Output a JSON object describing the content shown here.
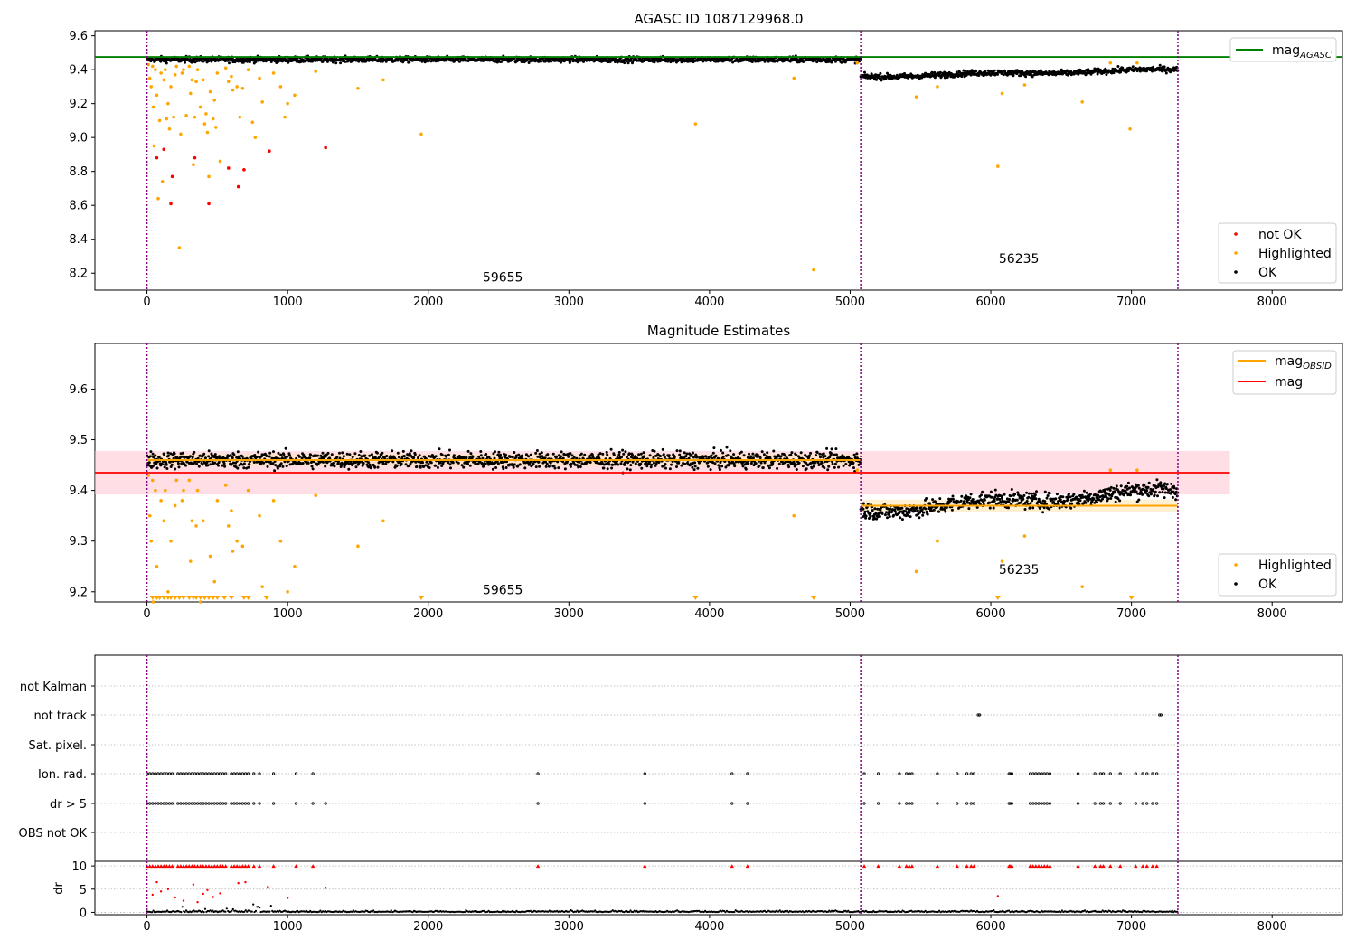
{
  "figure": {
    "title": "AGASC ID 1087129968.0",
    "subtitle": "Magnitude Estimates"
  },
  "colors": {
    "ok": "#000000",
    "highlighted": "#ffa500",
    "not_ok": "#ff0000",
    "agasc_line": "#008000",
    "mag_line": "#ff0000",
    "obsid_line": "#ffa500",
    "band": "#ffc0cb",
    "obs_boundary": "#800080",
    "grid": "#b0b0b0"
  },
  "chart_data": [
    {
      "type": "scatter",
      "title": "AGASC ID 1087129968.0",
      "xlim": [
        -370,
        8500
      ],
      "ylim": [
        8.1,
        9.63
      ],
      "xticks": [
        "0",
        "1000",
        "2000",
        "3000",
        "4000",
        "5000",
        "6000",
        "7000",
        "8000"
      ],
      "yticks": [
        "8.2",
        "8.4",
        "8.6",
        "8.8",
        "9.0",
        "9.2",
        "9.4",
        "9.6"
      ],
      "legend_top": {
        "position": "top-right",
        "entries": [
          "mag",
          "AGASC"
        ]
      },
      "legend_bottom": {
        "position": "bottom-right",
        "entries": [
          "not OK",
          "Highlighted",
          "OK"
        ]
      },
      "annotations": [
        {
          "text": "59655",
          "x": 2530,
          "y": 8.15
        },
        {
          "text": "56235",
          "x": 6200,
          "y": 8.26
        }
      ],
      "observation_boundaries": [
        0,
        5075,
        7330
      ],
      "mag_agasc": {
        "value": 9.475,
        "x_range": [
          -370,
          8500
        ]
      },
      "segments": [
        {
          "obsid": "59655",
          "x_range": [
            0,
            5075
          ],
          "mean": 9.46,
          "spread": 0.012
        },
        {
          "obsid": "56235",
          "x_range": [
            5075,
            7330
          ],
          "mean_start": 9.36,
          "mean_end": 9.4,
          "spread": 0.012
        }
      ],
      "series": [
        {
          "name": "not OK",
          "points": [
            [
              70,
              8.88
            ],
            [
              120,
              8.93
            ],
            [
              170,
              8.61
            ],
            [
              180,
              8.77
            ],
            [
              340,
              8.88
            ],
            [
              440,
              8.61
            ],
            [
              580,
              8.82
            ],
            [
              650,
              8.71
            ],
            [
              690,
              8.81
            ],
            [
              870,
              8.92
            ],
            [
              1270,
              8.94
            ]
          ]
        },
        {
          "name": "Highlighted",
          "points": [
            [
              10,
              9.43
            ],
            [
              20,
              9.35
            ],
            [
              30,
              9.3
            ],
            [
              40,
              9.42
            ],
            [
              45,
              9.18
            ],
            [
              50,
              8.95
            ],
            [
              60,
              9.4
            ],
            [
              70,
              9.25
            ],
            [
              80,
              8.64
            ],
            [
              90,
              9.1
            ],
            [
              100,
              9.38
            ],
            [
              110,
              8.74
            ],
            [
              120,
              9.34
            ],
            [
              130,
              9.4
            ],
            [
              140,
              9.11
            ],
            [
              150,
              9.2
            ],
            [
              160,
              9.05
            ],
            [
              170,
              9.3
            ],
            [
              190,
              9.12
            ],
            [
              200,
              9.37
            ],
            [
              210,
              9.42
            ],
            [
              230,
              8.35
            ],
            [
              240,
              9.02
            ],
            [
              250,
              9.38
            ],
            [
              260,
              9.4
            ],
            [
              280,
              9.13
            ],
            [
              300,
              9.42
            ],
            [
              310,
              9.26
            ],
            [
              320,
              9.34
            ],
            [
              330,
              8.84
            ],
            [
              340,
              9.12
            ],
            [
              350,
              9.33
            ],
            [
              360,
              9.4
            ],
            [
              380,
              9.18
            ],
            [
              400,
              9.34
            ],
            [
              410,
              9.08
            ],
            [
              420,
              9.14
            ],
            [
              430,
              9.03
            ],
            [
              440,
              8.77
            ],
            [
              450,
              9.27
            ],
            [
              470,
              9.11
            ],
            [
              480,
              9.22
            ],
            [
              490,
              9.06
            ],
            [
              500,
              9.38
            ],
            [
              520,
              8.86
            ],
            [
              560,
              9.41
            ],
            [
              580,
              9.33
            ],
            [
              600,
              9.36
            ],
            [
              610,
              9.28
            ],
            [
              640,
              9.3
            ],
            [
              660,
              9.12
            ],
            [
              680,
              9.29
            ],
            [
              720,
              9.4
            ],
            [
              750,
              9.09
            ],
            [
              770,
              9.0
            ],
            [
              800,
              9.35
            ],
            [
              820,
              9.21
            ],
            [
              900,
              9.38
            ],
            [
              950,
              9.3
            ],
            [
              980,
              9.12
            ],
            [
              1000,
              9.2
            ],
            [
              1050,
              9.25
            ],
            [
              1200,
              9.39
            ],
            [
              1500,
              9.29
            ],
            [
              1680,
              9.34
            ],
            [
              1950,
              9.02
            ],
            [
              3900,
              9.08
            ],
            [
              4600,
              9.35
            ],
            [
              4740,
              8.22
            ],
            [
              5050,
              9.44
            ],
            [
              5470,
              9.24
            ],
            [
              5620,
              9.3
            ],
            [
              6050,
              8.83
            ],
            [
              6080,
              9.26
            ],
            [
              6240,
              9.31
            ],
            [
              6650,
              9.21
            ],
            [
              6850,
              9.44
            ],
            [
              6990,
              9.05
            ],
            [
              7040,
              9.44
            ]
          ]
        },
        {
          "name": "OK",
          "density": "dense",
          "x_range": [
            0,
            7330
          ]
        }
      ]
    },
    {
      "type": "scatter",
      "title": "Magnitude Estimates",
      "xlim": [
        -370,
        8500
      ],
      "ylim": [
        9.18,
        9.69
      ],
      "xticks": [
        "0",
        "1000",
        "2000",
        "3000",
        "4000",
        "5000",
        "6000",
        "7000",
        "8000"
      ],
      "yticks": [
        "9.2",
        "9.3",
        "9.4",
        "9.5",
        "9.6"
      ],
      "legend_top": {
        "position": "top-right",
        "entries": [
          "mag",
          "OBSID",
          "mag"
        ]
      },
      "legend_bottom": {
        "position": "bottom-right",
        "entries": [
          "Highlighted",
          "OK"
        ]
      },
      "annotations": [
        {
          "text": "59655",
          "x": 2530,
          "y": 9.195
        },
        {
          "text": "56235",
          "x": 6200,
          "y": 9.235
        }
      ],
      "mag": {
        "value": 9.435,
        "band": [
          9.392,
          9.478
        ],
        "x_range": [
          -370,
          7700
        ]
      },
      "mag_obsid": [
        {
          "x_range": [
            0,
            5075
          ],
          "value": 9.46
        },
        {
          "x_range": [
            5075,
            7330
          ],
          "value": 9.37
        }
      ],
      "clipped_low_x": [
        40,
        70,
        90,
        120,
        150,
        170,
        200,
        230,
        260,
        300,
        330,
        350,
        380,
        410,
        440,
        470,
        500,
        550,
        600,
        690,
        720,
        850,
        1950,
        3900,
        4740,
        6050,
        7000
      ]
    },
    {
      "type": "scatter",
      "title": "",
      "xlim": [
        -370,
        8500
      ],
      "xticks": [
        "0",
        "1000",
        "2000",
        "3000",
        "4000",
        "5000",
        "6000",
        "7000",
        "8000"
      ],
      "flag_rows": [
        "not Kalman",
        "not track",
        "Sat. pixel.",
        "Ion. rad.",
        "dr > 5",
        "OBS not OK"
      ],
      "flags": {
        "not track": [
          5910,
          5920,
          7200,
          7210
        ],
        "Ion. rad.": [
          0,
          20,
          40,
          60,
          80,
          100,
          120,
          140,
          160,
          180,
          220,
          240,
          260,
          280,
          300,
          320,
          340,
          360,
          380,
          400,
          420,
          440,
          460,
          480,
          500,
          520,
          540,
          560,
          600,
          620,
          640,
          660,
          680,
          700,
          720,
          760,
          800,
          900,
          1060,
          1180,
          2780,
          3540,
          4160,
          4270,
          5100,
          5200,
          5350,
          5400,
          5420,
          5440,
          5620,
          5760,
          5830,
          5860,
          5880,
          6130,
          6140,
          6150,
          6280,
          6300,
          6320,
          6340,
          6360,
          6380,
          6400,
          6420,
          6620,
          6740,
          6780,
          6800,
          6850,
          6920,
          7030,
          7080,
          7110,
          7150,
          7180
        ],
        "dr > 5": [
          0,
          20,
          40,
          60,
          80,
          100,
          120,
          140,
          160,
          180,
          220,
          240,
          260,
          280,
          300,
          320,
          340,
          360,
          380,
          400,
          420,
          440,
          460,
          480,
          500,
          520,
          540,
          560,
          600,
          620,
          640,
          660,
          680,
          700,
          720,
          760,
          800,
          900,
          1060,
          1180,
          1270,
          2780,
          3540,
          4160,
          4270,
          5100,
          5200,
          5350,
          5400,
          5420,
          5440,
          5620,
          5760,
          5830,
          5860,
          5880,
          6130,
          6140,
          6150,
          6280,
          6300,
          6320,
          6340,
          6360,
          6380,
          6400,
          6420,
          6620,
          6740,
          6780,
          6800,
          6850,
          6920,
          7030,
          7080,
          7110,
          7150,
          7180
        ]
      },
      "dr_axis": {
        "ylabel": "dr",
        "yticks": [
          "0",
          "5",
          "10"
        ],
        "ylim": [
          -0.5,
          11
        ]
      },
      "dr_over_limit_x": [
        0,
        20,
        40,
        60,
        80,
        100,
        120,
        140,
        160,
        180,
        220,
        240,
        260,
        280,
        300,
        320,
        340,
        360,
        380,
        400,
        420,
        440,
        460,
        480,
        500,
        520,
        540,
        560,
        600,
        620,
        640,
        660,
        680,
        700,
        720,
        760,
        800,
        900,
        1060,
        1180,
        2780,
        3540,
        4160,
        4270,
        5100,
        5200,
        5350,
        5400,
        5420,
        5440,
        5620,
        5760,
        5830,
        5860,
        5880,
        6130,
        6140,
        6150,
        6280,
        6300,
        6320,
        6340,
        6360,
        6380,
        6400,
        6420,
        6620,
        6740,
        6780,
        6800,
        6850,
        6920,
        7030,
        7080,
        7110,
        7150,
        7180
      ],
      "dr_notok": [
        [
          40,
          3.8
        ],
        [
          70,
          6.5
        ],
        [
          100,
          4.5
        ],
        [
          150,
          5.0
        ],
        [
          200,
          3.2
        ],
        [
          260,
          2.5
        ],
        [
          330,
          6.0
        ],
        [
          360,
          2.2
        ],
        [
          400,
          4.0
        ],
        [
          430,
          4.8
        ],
        [
          470,
          3.3
        ],
        [
          520,
          4.1
        ],
        [
          650,
          6.3
        ],
        [
          700,
          6.5
        ],
        [
          860,
          5.5
        ],
        [
          1000,
          3.1
        ],
        [
          1270,
          5.3
        ],
        [
          6050,
          3.5
        ]
      ]
    }
  ]
}
